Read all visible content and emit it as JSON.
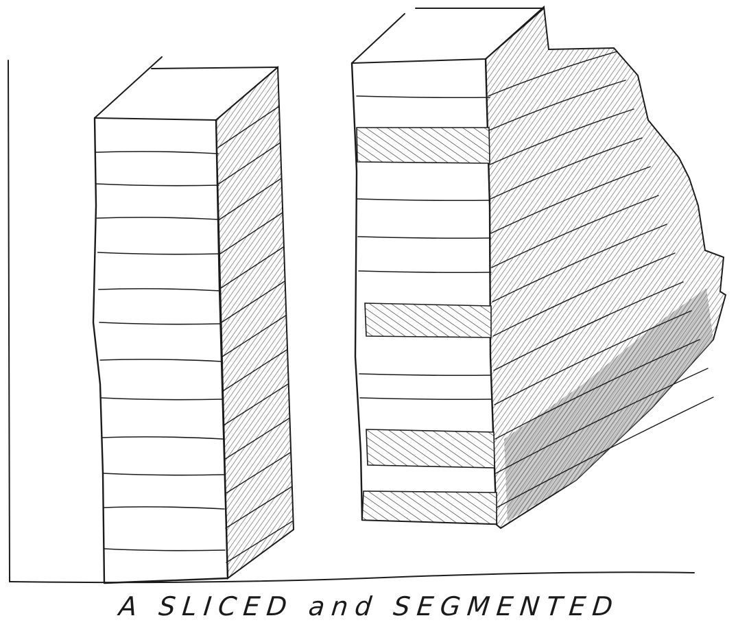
{
  "caption": "A SLICED and SEGMENTED",
  "colors": {
    "ink": "#1b1b1b",
    "paper": "#ffffff",
    "shade": "#6f6f6f"
  }
}
